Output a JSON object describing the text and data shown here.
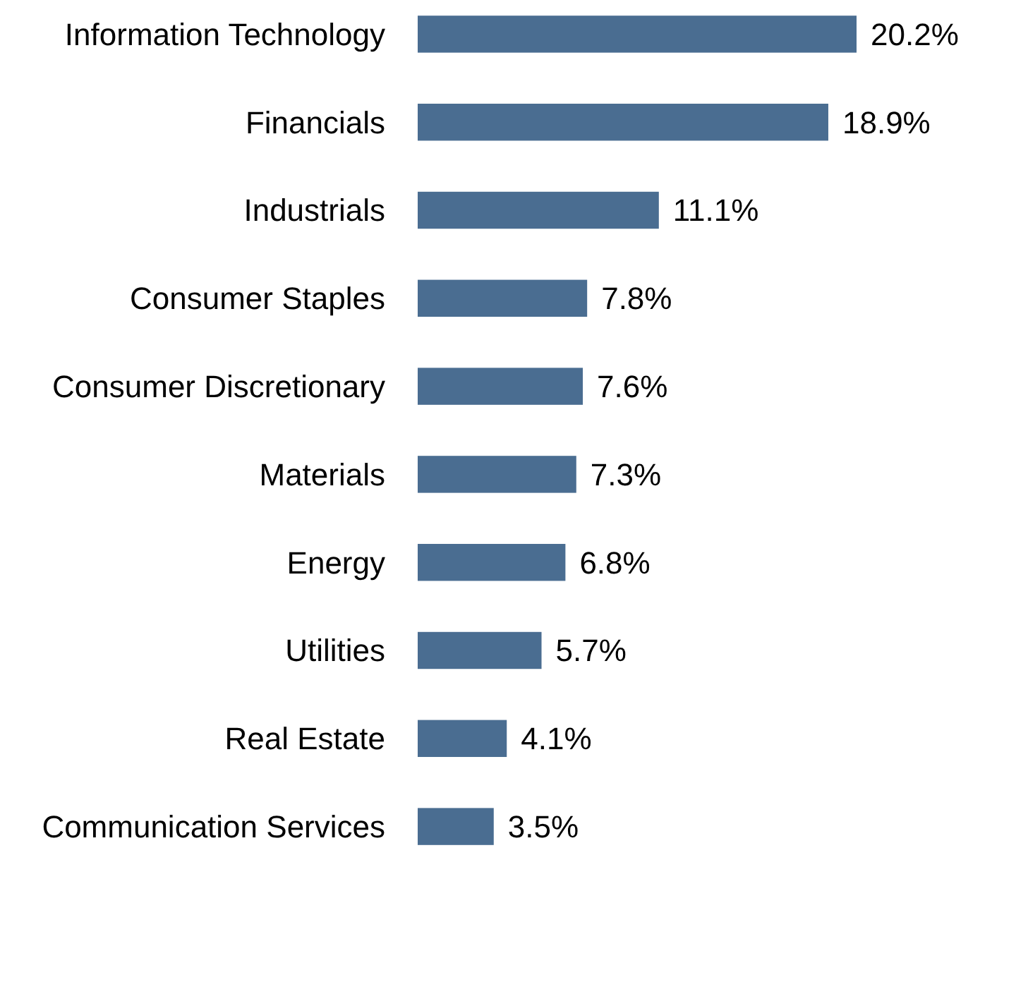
{
  "chart_data": {
    "type": "bar",
    "orientation": "horizontal",
    "categories": [
      "Information Technology",
      "Financials",
      "Industrials",
      "Consumer Staples",
      "Consumer Discretionary",
      "Materials",
      "Energy",
      "Utilities",
      "Real Estate",
      "Communication Services"
    ],
    "values": [
      20.2,
      18.9,
      11.1,
      7.8,
      7.6,
      7.3,
      6.8,
      5.7,
      4.1,
      3.5
    ],
    "value_labels": [
      "20.2%",
      "18.9%",
      "11.1%",
      "7.8%",
      "7.6%",
      "7.3%",
      "6.8%",
      "5.7%",
      "4.1%",
      "3.5%"
    ],
    "color": "#4a6d91"
  }
}
